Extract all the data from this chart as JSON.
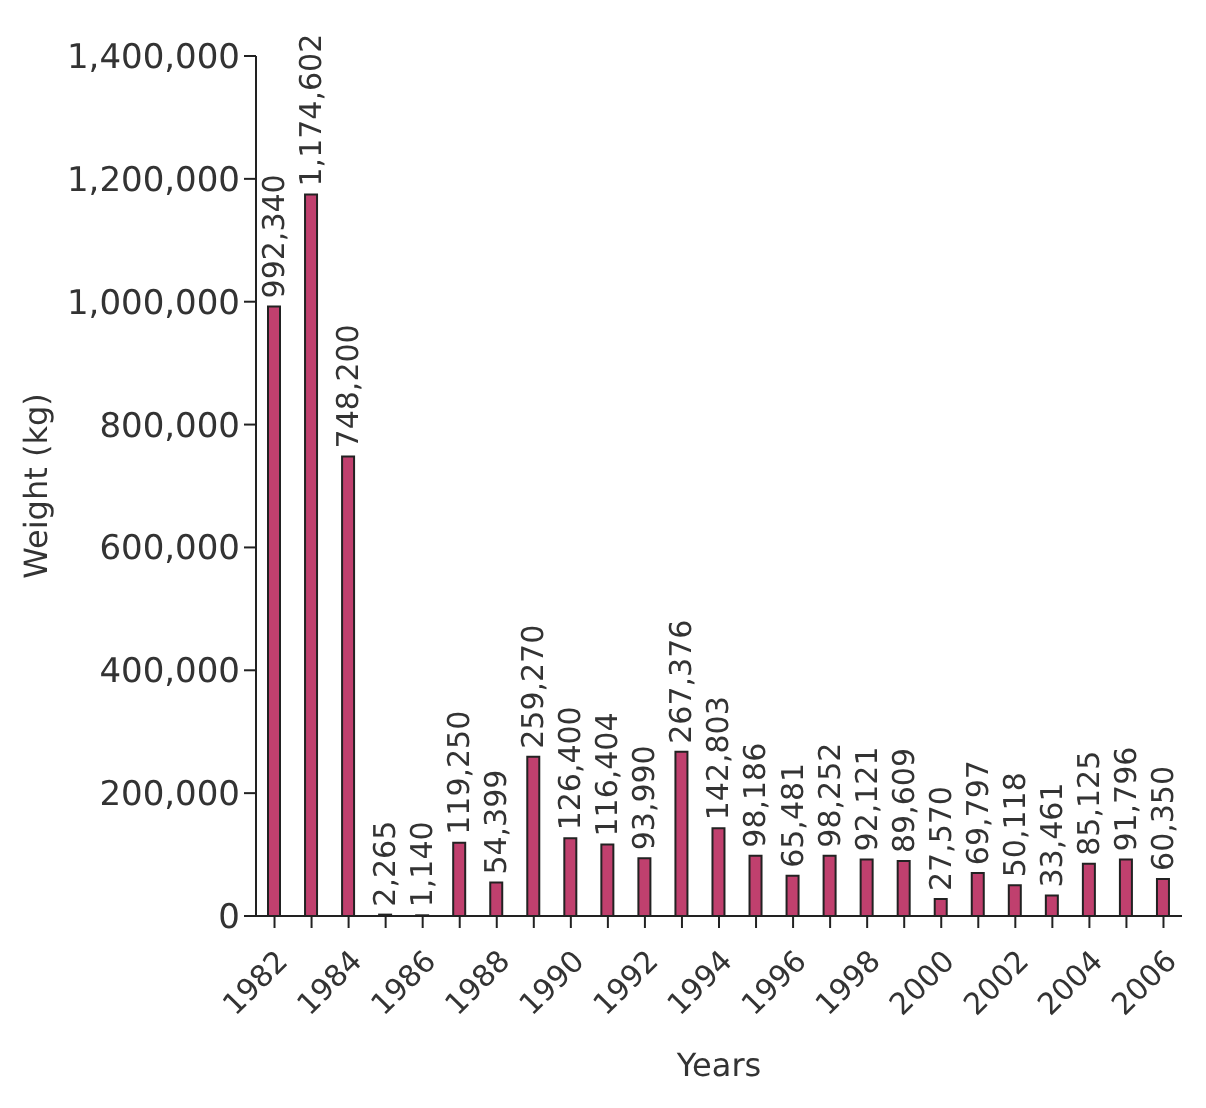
{
  "chart_data": {
    "type": "bar",
    "xlabel": "Years",
    "ylabel": "Weight (kg)",
    "categories": [
      "1982",
      null,
      "1984",
      null,
      "1986",
      null,
      "1988",
      null,
      "1990",
      null,
      "1992",
      null,
      "1994",
      null,
      "1996",
      null,
      "1998",
      null,
      "2000",
      null,
      "2002",
      null,
      "2004",
      null,
      "2006"
    ],
    "values": [
      992340,
      1174602,
      748200,
      2265,
      1140,
      119250,
      54399,
      259270,
      126400,
      116404,
      93990,
      267376,
      142803,
      98186,
      65481,
      98252,
      92121,
      89609,
      27570,
      69797,
      50118,
      33461,
      85125,
      91796,
      60350
    ],
    "value_labels": [
      "992,340",
      "1,174,602",
      "748,200",
      "2,265",
      "1,140",
      "119,250",
      "54,399",
      "259,270",
      "126,400",
      "116,404",
      "93,990",
      "267,376",
      "142,803",
      "98,186",
      "65,481",
      "98,252",
      "92,121",
      "89,609",
      "27,570",
      "69,797",
      "50,118",
      "33,461",
      "85,125",
      "91,796",
      "60,350"
    ],
    "color": "#c0406e",
    "ylim": [
      0,
      1400000
    ],
    "yticks": [
      0,
      {
        "value": 200000,
        "label": "200,000"
      },
      {
        "value": 400000,
        "label": "400,000"
      },
      {
        "value": 600000,
        "label": "600,000"
      },
      {
        "value": 800000,
        "label": "800,000"
      },
      {
        "value": 1000000,
        "label": "1,000,000"
      },
      {
        "value": 1200000,
        "label": "1,200,000"
      },
      {
        "value": 1400000,
        "label": "1,400,000"
      }
    ],
    "grid": false,
    "legend": false
  }
}
